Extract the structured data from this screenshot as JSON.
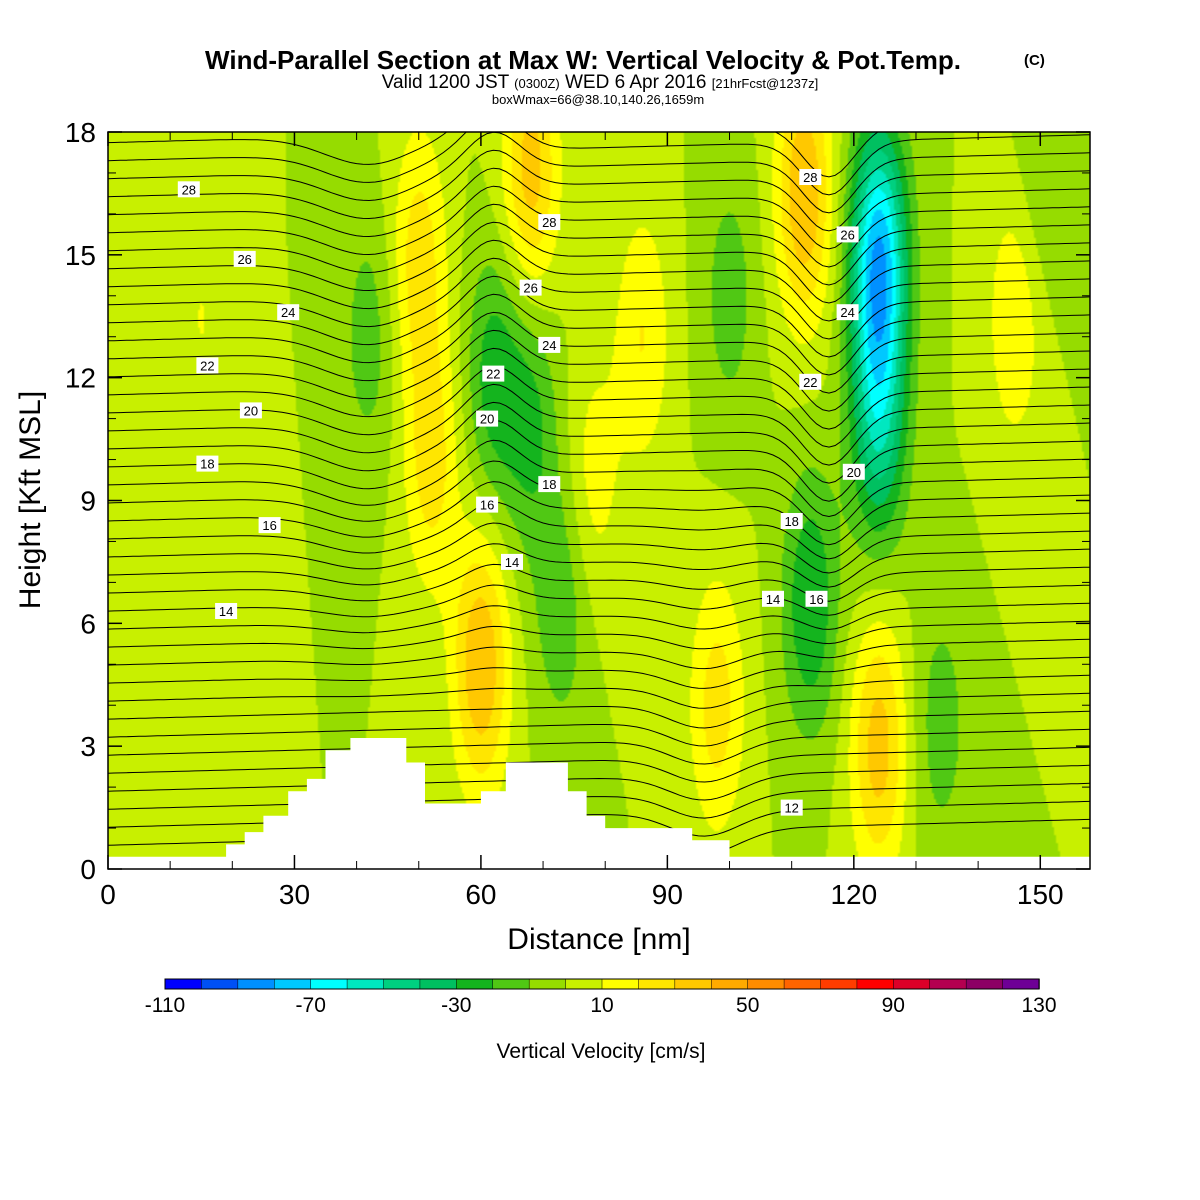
{
  "chart_data": {
    "type": "heatmap",
    "title": {
      "main": "Wind-Parallel Section at Max W: Vertical Velocity & Pot.Temp.",
      "copyright": "(C)",
      "valid_prefix": "Valid 1200 JST",
      "valid_utc": "(0300Z)",
      "valid_date": "WED 6 Apr 2016",
      "forecast": "[21hrFcst@1237z]",
      "box": "boxWmax=66@38.10,140.26,1659m"
    },
    "xlabel": "Distance [nm]",
    "ylabel": "Height [Kft MSL]",
    "xlim": [
      0,
      158
    ],
    "ylim": [
      0,
      18
    ],
    "xticks": [
      0,
      30,
      60,
      90,
      120,
      150
    ],
    "yticks": [
      0,
      3,
      6,
      9,
      12,
      15,
      18
    ],
    "colorbar": {
      "label": "Vertical Velocity [cm/s]",
      "min": -110,
      "step": 10,
      "tick_values": [
        "-110",
        "-70",
        "-30",
        "10",
        "50",
        "90",
        "130"
      ],
      "colors": [
        "#0000ff",
        "#0050f5",
        "#0090ff",
        "#00c8ff",
        "#00ffff",
        "#00e8c0",
        "#00d080",
        "#00c060",
        "#14b41e",
        "#50c814",
        "#96dc00",
        "#c8f000",
        "#ffff00",
        "#ffe600",
        "#ffc800",
        "#ffaa00",
        "#ff8c00",
        "#ff6400",
        "#ff3c00",
        "#ff0000",
        "#dc0028",
        "#b40050",
        "#8c0064",
        "#6e0096"
      ]
    },
    "vertical_velocity_field": {
      "background_cm_s": 0,
      "features": [
        {
          "x": 15,
          "z": 13.5,
          "w_cm_s": 10
        },
        {
          "x": 20,
          "z": 8.0,
          "w_cm_s": 8
        },
        {
          "x": 42,
          "z": 13.0,
          "w_cm_s": -15
        },
        {
          "x": 50,
          "z": 15.0,
          "w_cm_s": 25
        },
        {
          "x": 52,
          "z": 10.0,
          "w_cm_s": 25
        },
        {
          "x": 60,
          "z": 5.0,
          "w_cm_s": 40
        },
        {
          "x": 62,
          "z": 12.0,
          "w_cm_s": -25
        },
        {
          "x": 68,
          "z": 11.0,
          "w_cm_s": -22
        },
        {
          "x": 68,
          "z": 17.0,
          "w_cm_s": 35
        },
        {
          "x": 73,
          "z": 6.5,
          "w_cm_s": -18
        },
        {
          "x": 78,
          "z": 9.5,
          "w_cm_s": 15
        },
        {
          "x": 86,
          "z": 13.0,
          "w_cm_s": 20
        },
        {
          "x": 98,
          "z": 4.0,
          "w_cm_s": 25
        },
        {
          "x": 100,
          "z": 14.0,
          "w_cm_s": -15
        },
        {
          "x": 113,
          "z": 6.5,
          "w_cm_s": -30
        },
        {
          "x": 112,
          "z": 16.5,
          "w_cm_s": 40
        },
        {
          "x": 124,
          "z": 15.0,
          "w_cm_s": -75
        },
        {
          "x": 124,
          "z": 11.0,
          "w_cm_s": -45
        },
        {
          "x": 124,
          "z": 3.0,
          "w_cm_s": 35
        },
        {
          "x": 134,
          "z": 3.5,
          "w_cm_s": -15
        },
        {
          "x": 146,
          "z": 13.5,
          "w_cm_s": 20
        },
        {
          "x": 150,
          "z": 16.5,
          "w_cm_s": -10
        }
      ]
    },
    "potential_temperature": {
      "label_values": [
        "12",
        "14",
        "16",
        "18",
        "20",
        "22",
        "24",
        "26",
        "28"
      ],
      "labels": [
        {
          "text": "28",
          "x": 13,
          "z": 16.6
        },
        {
          "text": "26",
          "x": 22,
          "z": 14.9
        },
        {
          "text": "24",
          "x": 29,
          "z": 13.6
        },
        {
          "text": "22",
          "x": 16,
          "z": 12.3
        },
        {
          "text": "20",
          "x": 23,
          "z": 11.2
        },
        {
          "text": "18",
          "x": 16,
          "z": 9.9
        },
        {
          "text": "16",
          "x": 26,
          "z": 8.4
        },
        {
          "text": "14",
          "x": 19,
          "z": 6.3
        },
        {
          "text": "28",
          "x": 71,
          "z": 15.8
        },
        {
          "text": "26",
          "x": 68,
          "z": 14.2
        },
        {
          "text": "24",
          "x": 71,
          "z": 12.8
        },
        {
          "text": "22",
          "x": 62,
          "z": 12.1
        },
        {
          "text": "20",
          "x": 61,
          "z": 11.0
        },
        {
          "text": "18",
          "x": 71,
          "z": 9.4
        },
        {
          "text": "16",
          "x": 61,
          "z": 8.9
        },
        {
          "text": "14",
          "x": 65,
          "z": 7.5
        },
        {
          "text": "28",
          "x": 113,
          "z": 16.9
        },
        {
          "text": "26",
          "x": 119,
          "z": 15.5
        },
        {
          "text": "24",
          "x": 119,
          "z": 13.6
        },
        {
          "text": "22",
          "x": 113,
          "z": 11.9
        },
        {
          "text": "20",
          "x": 120,
          "z": 9.7
        },
        {
          "text": "18",
          "x": 110,
          "z": 8.5
        },
        {
          "text": "16",
          "x": 114,
          "z": 6.6
        },
        {
          "text": "14",
          "x": 107,
          "z": 6.6
        },
        {
          "text": "12",
          "x": 110,
          "z": 1.5
        }
      ]
    },
    "terrain_kft": [
      [
        0,
        0.3
      ],
      [
        19,
        0.3
      ],
      [
        19,
        0.6
      ],
      [
        22,
        0.6
      ],
      [
        22,
        0.9
      ],
      [
        25,
        0.9
      ],
      [
        25,
        1.3
      ],
      [
        29,
        1.3
      ],
      [
        29,
        1.9
      ],
      [
        32,
        1.9
      ],
      [
        32,
        2.2
      ],
      [
        35,
        2.2
      ],
      [
        35,
        2.9
      ],
      [
        39,
        2.9
      ],
      [
        39,
        3.2
      ],
      [
        48,
        3.2
      ],
      [
        48,
        2.6
      ],
      [
        51,
        2.6
      ],
      [
        51,
        1.6
      ],
      [
        60,
        1.6
      ],
      [
        60,
        1.9
      ],
      [
        64,
        1.9
      ],
      [
        64,
        2.6
      ],
      [
        74,
        2.6
      ],
      [
        74,
        1.9
      ],
      [
        77,
        1.9
      ],
      [
        77,
        1.3
      ],
      [
        80,
        1.3
      ],
      [
        80,
        1.0
      ],
      [
        94,
        1.0
      ],
      [
        94,
        0.7
      ],
      [
        100,
        0.7
      ],
      [
        100,
        0.3
      ],
      [
        158,
        0.3
      ]
    ]
  }
}
